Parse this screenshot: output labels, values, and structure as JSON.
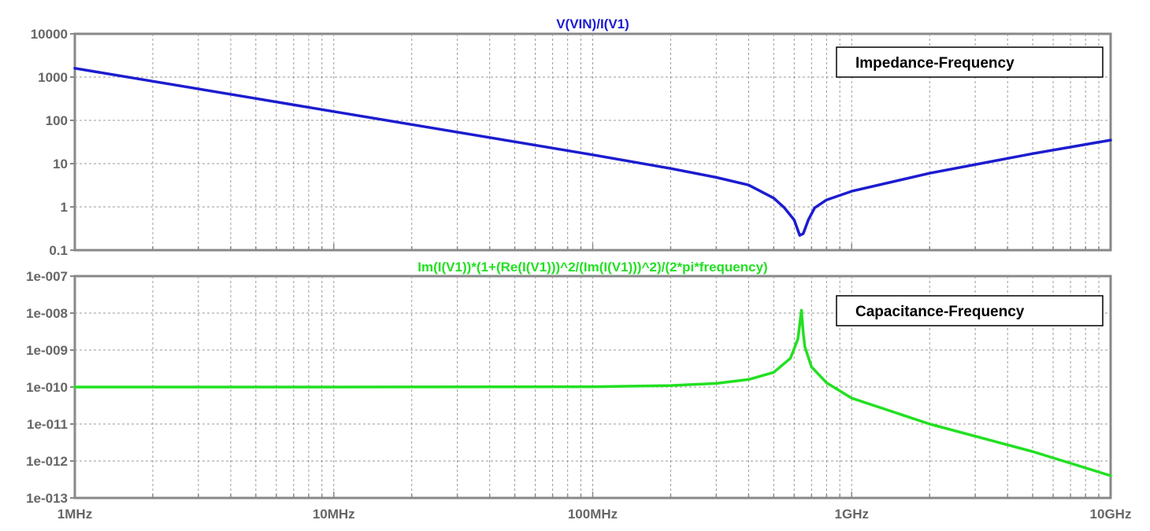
{
  "chart_data": [
    {
      "type": "line",
      "title": "V(VIN)/I(V1)",
      "xscale": "log",
      "yscale": "log",
      "xlim": [
        1000000,
        10000000000
      ],
      "ylim": [
        0.1,
        10000
      ],
      "x_tick_labels": [
        "1MHz",
        "10MHz",
        "100MHz",
        "1GHz",
        "10GHz"
      ],
      "y_tick_labels": [
        "10000",
        "1000",
        "100",
        "10",
        "1",
        "0.1"
      ],
      "grid": true,
      "annotation": "Impedance-Frequency",
      "colors": {
        "trace": "#1c1cd0",
        "title": "#1c1cd0"
      },
      "series": [
        {
          "x": [
            1000000,
            2000000,
            5000000,
            10000000,
            20000000,
            50000000,
            100000000,
            200000000,
            300000000,
            400000000,
            500000000,
            550000000,
            600000000,
            630000000,
            650000000,
            680000000,
            720000000,
            800000000,
            1000000000,
            2000000000,
            5000000000,
            10000000000
          ],
          "y": [
            1600,
            800,
            320,
            160,
            80,
            32,
            16,
            7.7,
            4.8,
            3.2,
            1.6,
            0.95,
            0.5,
            0.22,
            0.24,
            0.5,
            0.95,
            1.45,
            2.3,
            6,
            17,
            35
          ]
        }
      ]
    },
    {
      "type": "line",
      "title": "Im(I(V1))*(1+(Re(I(V1)))^2/(Im(I(V1)))^2)/(2*pi*frequency)",
      "xscale": "log",
      "yscale": "log",
      "xlim": [
        1000000,
        10000000000
      ],
      "ylim": [
        1e-13,
        1e-07
      ],
      "x_tick_labels": [
        "1MHz",
        "10MHz",
        "100MHz",
        "1GHz",
        "10GHz"
      ],
      "y_tick_labels": [
        "1e-007",
        "1e-008",
        "1e-009",
        "1e-010",
        "1e-011",
        "1e-012",
        "1e-013"
      ],
      "grid": true,
      "annotation": "Capacitance-Frequency",
      "colors": {
        "trace": "#22e022",
        "title": "#22e022"
      },
      "series": [
        {
          "x": [
            1000000,
            10000000,
            100000000,
            200000000,
            300000000,
            400000000,
            500000000,
            580000000,
            620000000,
            640000000,
            650000000,
            660000000,
            700000000,
            800000000,
            1000000000,
            2000000000,
            5000000000,
            10000000000
          ],
          "y": [
            1e-10,
            1e-10,
            1.02e-10,
            1.1e-10,
            1.25e-10,
            1.6e-10,
            2.5e-10,
            6e-10,
            2e-09,
            1.2e-08,
            3e-09,
            1.2e-09,
            3.5e-10,
            1.3e-10,
            5e-11,
            1e-11,
            1.8e-12,
            4e-13
          ]
        }
      ]
    }
  ]
}
